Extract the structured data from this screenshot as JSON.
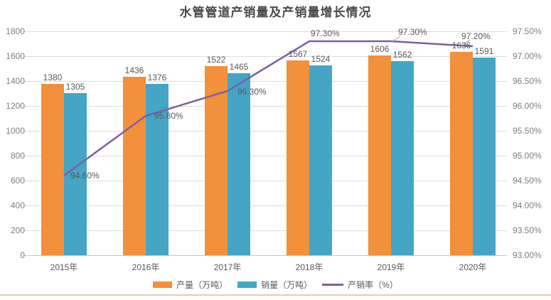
{
  "title": "水管管道产销量及产销量增长情况",
  "colors": {
    "production_bar": "#F2903B",
    "sales_bar": "#45A5C5",
    "rate_line": "#7D60A0",
    "grid": "#DDDDDD",
    "axis_text": "#7F7F7F",
    "label_text": "#595959",
    "leader_line": "#A0A0A0",
    "bottom_accent": "#EFCB9F"
  },
  "chart_data": {
    "type": "bar",
    "subtype": "grouped-bars-with-line",
    "title": "水管管道产销量及产销量增长情况",
    "categories": [
      "2015年",
      "2016年",
      "2017年",
      "2018年",
      "2019年",
      "2020年"
    ],
    "series": [
      {
        "name": "产量（万吨）",
        "type": "bar",
        "color": "#F2903B",
        "values": [
          1380,
          1436,
          1522,
          1567,
          1606,
          1636
        ],
        "value_labels": [
          "1380",
          "1436",
          "1522",
          "1567",
          "1606",
          "1636"
        ]
      },
      {
        "name": "销量（万吨）",
        "type": "bar",
        "color": "#45A5C5",
        "values": [
          1305,
          1376,
          1465,
          1524,
          1562,
          1591
        ],
        "value_labels": [
          "1305",
          "1376",
          "1465",
          "1524",
          "1562",
          "1591"
        ]
      },
      {
        "name": "产销率（%）",
        "type": "line",
        "color": "#7D60A0",
        "values": [
          94.6,
          95.8,
          96.3,
          97.3,
          97.3,
          97.2
        ],
        "value_labels": [
          "94.60%",
          "95.80%",
          "96.30%",
          "97.30%",
          "97.30%",
          "97.20%"
        ]
      }
    ],
    "left_axis": {
      "min": 0,
      "max": 1800,
      "step": 200,
      "ticks": [
        "0",
        "200",
        "400",
        "600",
        "800",
        "1000",
        "1200",
        "1400",
        "1600",
        "1800"
      ]
    },
    "right_axis": {
      "min": 93.0,
      "max": 97.5,
      "step": 0.5,
      "ticks": [
        "93.00%",
        "93.50%",
        "94.00%",
        "94.50%",
        "95.00%",
        "95.50%",
        "96.00%",
        "96.50%",
        "97.00%",
        "97.50%"
      ]
    },
    "grid": true,
    "legend_position": "bottom"
  }
}
